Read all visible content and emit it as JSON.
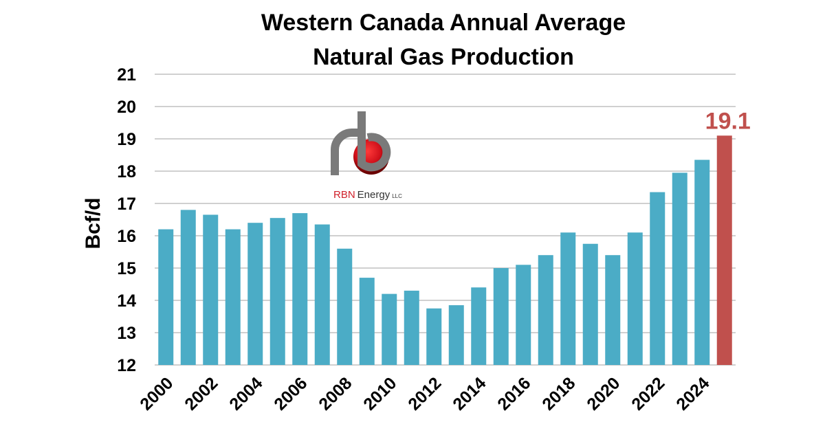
{
  "chart_data": {
    "type": "bar",
    "title": [
      "Western Canada Annual Average",
      "Natural Gas Production"
    ],
    "xlabel": "",
    "ylabel": "Bcf/d",
    "ylim": [
      12,
      21
    ],
    "yticks": [
      12,
      13,
      14,
      15,
      16,
      17,
      18,
      19,
      20,
      21
    ],
    "grid": true,
    "categories": [
      "2000",
      "2001",
      "2002",
      "2003",
      "2004",
      "2005",
      "2006",
      "2007",
      "2008",
      "2009",
      "2010",
      "2011",
      "2012",
      "2013",
      "2014",
      "2015",
      "2016",
      "2017",
      "2018",
      "2019",
      "2020",
      "2021",
      "2022",
      "2023",
      "2024",
      "2025"
    ],
    "xtick_labels": [
      "2000",
      "2002",
      "2004",
      "2006",
      "2008",
      "2010",
      "2012",
      "2014",
      "2016",
      "2018",
      "2020",
      "2022",
      "2024"
    ],
    "values": [
      16.2,
      16.8,
      16.65,
      16.2,
      16.4,
      16.55,
      16.7,
      16.35,
      15.6,
      14.7,
      14.2,
      14.3,
      13.75,
      13.85,
      14.4,
      15.0,
      15.1,
      15.4,
      16.1,
      15.75,
      15.4,
      16.1,
      17.35,
      17.95,
      18.35,
      19.1
    ],
    "highlight": {
      "category": "2025",
      "label": "19.1"
    },
    "colors": {
      "bar": "#4bacc6",
      "highlight": "#c0504d",
      "grid": "#d0d0d0"
    }
  },
  "logo": {
    "text_red": "RBN",
    "text_dark": "Energy",
    "suffix": "LLC"
  }
}
